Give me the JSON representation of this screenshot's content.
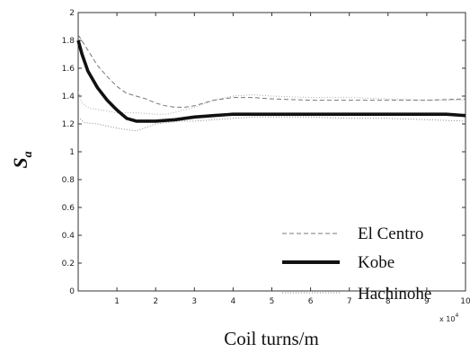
{
  "chart_data": {
    "type": "line",
    "title": "",
    "xlabel": "Coil turns/m",
    "ylabel_main": "S",
    "ylabel_sub": "a",
    "x_multiplier": "x 10",
    "x_multiplier_exp": "4",
    "xlim": [
      0,
      10
    ],
    "ylim": [
      0,
      2
    ],
    "x_ticks": [
      "1",
      "2",
      "3",
      "4",
      "5",
      "6",
      "7",
      "8",
      "9",
      "10"
    ],
    "y_ticks": [
      "0",
      "0.2",
      "0.4",
      "0.6",
      "0.8",
      "1",
      "1.2",
      "1.4",
      "1.6",
      "1.8",
      "2"
    ],
    "grid": false,
    "legend_position": "bottom-right",
    "series": [
      {
        "name": "El Centro",
        "style": "dashed",
        "x": [
          0,
          0.25,
          0.5,
          0.75,
          1.0,
          1.25,
          1.5,
          1.75,
          2.0,
          2.25,
          2.5,
          2.75,
          3.0,
          3.5,
          4.0,
          4.5,
          5.0,
          6.0,
          7.0,
          8.0,
          9.0,
          10.0
        ],
        "values": [
          1.84,
          1.73,
          1.62,
          1.54,
          1.47,
          1.42,
          1.4,
          1.38,
          1.35,
          1.33,
          1.32,
          1.32,
          1.33,
          1.37,
          1.39,
          1.39,
          1.38,
          1.37,
          1.37,
          1.37,
          1.37,
          1.38
        ]
      },
      {
        "name": "Kobe",
        "style": "solid-thick",
        "x": [
          0,
          0.1,
          0.25,
          0.5,
          0.75,
          1.0,
          1.25,
          1.5,
          2.0,
          2.5,
          3.0,
          3.5,
          4.0,
          4.5,
          5.0,
          6.0,
          7.0,
          8.0,
          9.0,
          9.5,
          10.0
        ],
        "values": [
          1.8,
          1.7,
          1.58,
          1.46,
          1.37,
          1.3,
          1.24,
          1.22,
          1.22,
          1.23,
          1.25,
          1.26,
          1.27,
          1.27,
          1.27,
          1.27,
          1.27,
          1.27,
          1.27,
          1.27,
          1.26
        ]
      },
      {
        "name": "Hachinohe",
        "style": "dotted",
        "x": [
          0,
          0.15,
          0.5,
          1.0,
          1.5,
          2.0,
          2.3,
          2.6,
          3.0,
          3.5,
          4.0,
          4.5,
          5.0,
          6.0,
          7.0,
          8.0,
          9.0,
          10.0
        ],
        "values": [
          1.25,
          1.21,
          1.2,
          1.17,
          1.15,
          1.2,
          1.21,
          1.22,
          1.22,
          1.23,
          1.24,
          1.25,
          1.25,
          1.25,
          1.24,
          1.24,
          1.23,
          1.22
        ]
      },
      {
        "name": "",
        "style": "dotted-faint",
        "x": [
          0,
          0.1,
          0.3,
          0.6,
          1.0,
          1.5,
          2.0,
          2.3,
          2.6,
          3.0,
          3.5,
          4.0,
          4.5,
          5.0,
          6.0,
          7.0,
          8.0,
          9.0,
          10.0
        ],
        "values": [
          1.43,
          1.35,
          1.31,
          1.3,
          1.28,
          1.28,
          1.27,
          1.27,
          1.29,
          1.32,
          1.37,
          1.4,
          1.41,
          1.4,
          1.39,
          1.39,
          1.38,
          1.37,
          1.37
        ]
      }
    ],
    "colors": {
      "axis": "#222222",
      "line": "#111111",
      "dashed": "#777777",
      "dotted": "#888888"
    }
  }
}
